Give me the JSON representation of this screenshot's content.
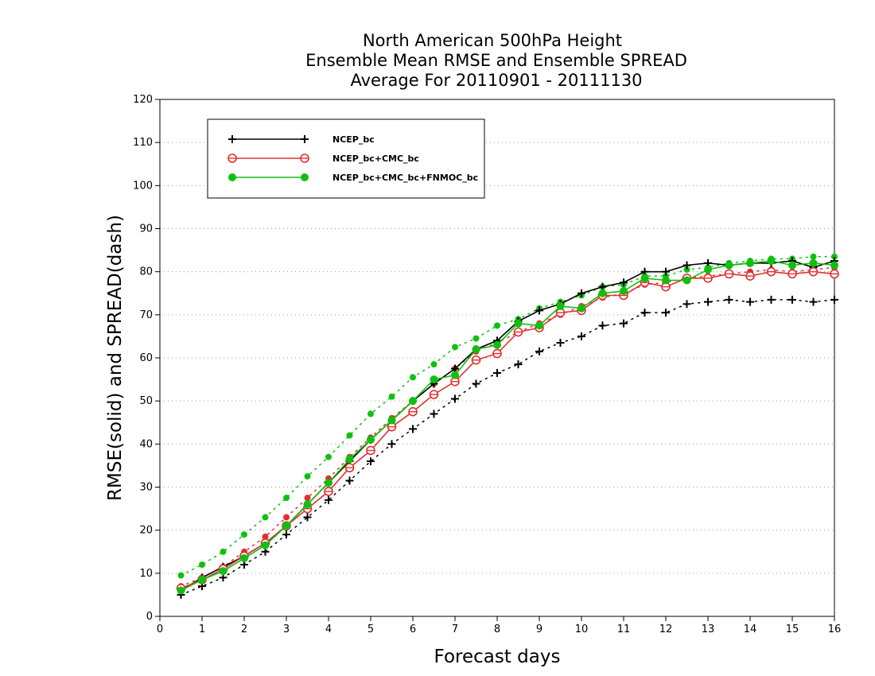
{
  "chart_data": {
    "type": "line",
    "title_lines": [
      "North American 500hPa Height",
      "Ensemble Mean RMSE and Ensemble SPREAD",
      "Average For 20110901 - 20111130"
    ],
    "xlabel": "Forecast days",
    "ylabel": "RMSE(solid) and SPREAD(dash)",
    "xlim": [
      0,
      16
    ],
    "ylim": [
      0,
      120
    ],
    "xticks": [
      0,
      1,
      2,
      3,
      4,
      5,
      6,
      7,
      8,
      9,
      10,
      11,
      12,
      13,
      14,
      15,
      16
    ],
    "yticks": [
      0,
      10,
      20,
      30,
      40,
      50,
      60,
      70,
      80,
      90,
      100,
      110,
      120
    ],
    "grid": "horizontal dotted",
    "legend_position": "top-left",
    "x": [
      0.5,
      1,
      1.5,
      2,
      2.5,
      3,
      3.5,
      4,
      4.5,
      5,
      5.5,
      6,
      6.5,
      7,
      7.5,
      8,
      8.5,
      9,
      9.5,
      10,
      10.5,
      11,
      11.5,
      12,
      12.5,
      13,
      13.5,
      14,
      14.5,
      15,
      15.5,
      16
    ],
    "series": [
      {
        "name": "NCEP_bc",
        "color": "#000000",
        "marker": "plus",
        "rmse": [
          6,
          9,
          11.5,
          14,
          17,
          21,
          26,
          31,
          36,
          41,
          45.5,
          50,
          54,
          57.5,
          62,
          64,
          68.5,
          71,
          72.5,
          75,
          76.5,
          77.5,
          80,
          80,
          81.5,
          82,
          81.5,
          82,
          82,
          82.5,
          81,
          82.5
        ],
        "spread": [
          5,
          7,
          9,
          12,
          15,
          19,
          23,
          27,
          31.5,
          36,
          40,
          43.5,
          47,
          50.5,
          54,
          56.5,
          58.5,
          61.5,
          63.5,
          65,
          67.5,
          68,
          70.5,
          70.5,
          72.5,
          73,
          73.5,
          73,
          73.5,
          73.5,
          73,
          73.5
        ]
      },
      {
        "name": "NCEP_bc+CMC_bc",
        "color": "#e03030",
        "marker": "open-circle",
        "rmse": [
          6.5,
          8.5,
          11,
          14,
          17,
          21,
          25,
          29,
          34.5,
          38.5,
          44,
          47.5,
          51.5,
          54.5,
          59.5,
          61,
          66,
          67,
          70.5,
          71,
          74.5,
          74.5,
          77.5,
          76.5,
          78.5,
          78.5,
          79.5,
          79,
          80,
          79.5,
          80,
          79.5
        ],
        "spread": [
          7,
          9,
          11.5,
          15,
          18.5,
          23,
          27.5,
          32,
          37,
          41.5,
          46,
          50,
          54,
          57.5,
          61.5,
          63.5,
          66,
          68,
          70,
          72,
          74,
          75,
          77,
          77.5,
          78.5,
          79,
          79.5,
          80,
          80.5,
          80,
          80.5,
          81
        ]
      },
      {
        "name": "NCEP_bc+CMC_bc+FNMOC_bc",
        "color": "#10c010",
        "marker": "filled-circle",
        "rmse": [
          6,
          8.5,
          10.5,
          13.5,
          16.5,
          21,
          26,
          31,
          36.5,
          41,
          45.5,
          50,
          55,
          56,
          62,
          63,
          68,
          67.5,
          72,
          71.5,
          75,
          75.5,
          78.5,
          78,
          78,
          80.5,
          81.5,
          82,
          82.5,
          81.5,
          82,
          81.5
        ],
        "spread": [
          9.5,
          12,
          15,
          19,
          23,
          27.5,
          32.5,
          37,
          42,
          47,
          51,
          55.5,
          58.5,
          62.5,
          64.5,
          67.5,
          69,
          71.5,
          73,
          74.5,
          76.5,
          77,
          79,
          79,
          80.5,
          81,
          82,
          82.5,
          83,
          83,
          83.5,
          83.5
        ]
      }
    ]
  }
}
